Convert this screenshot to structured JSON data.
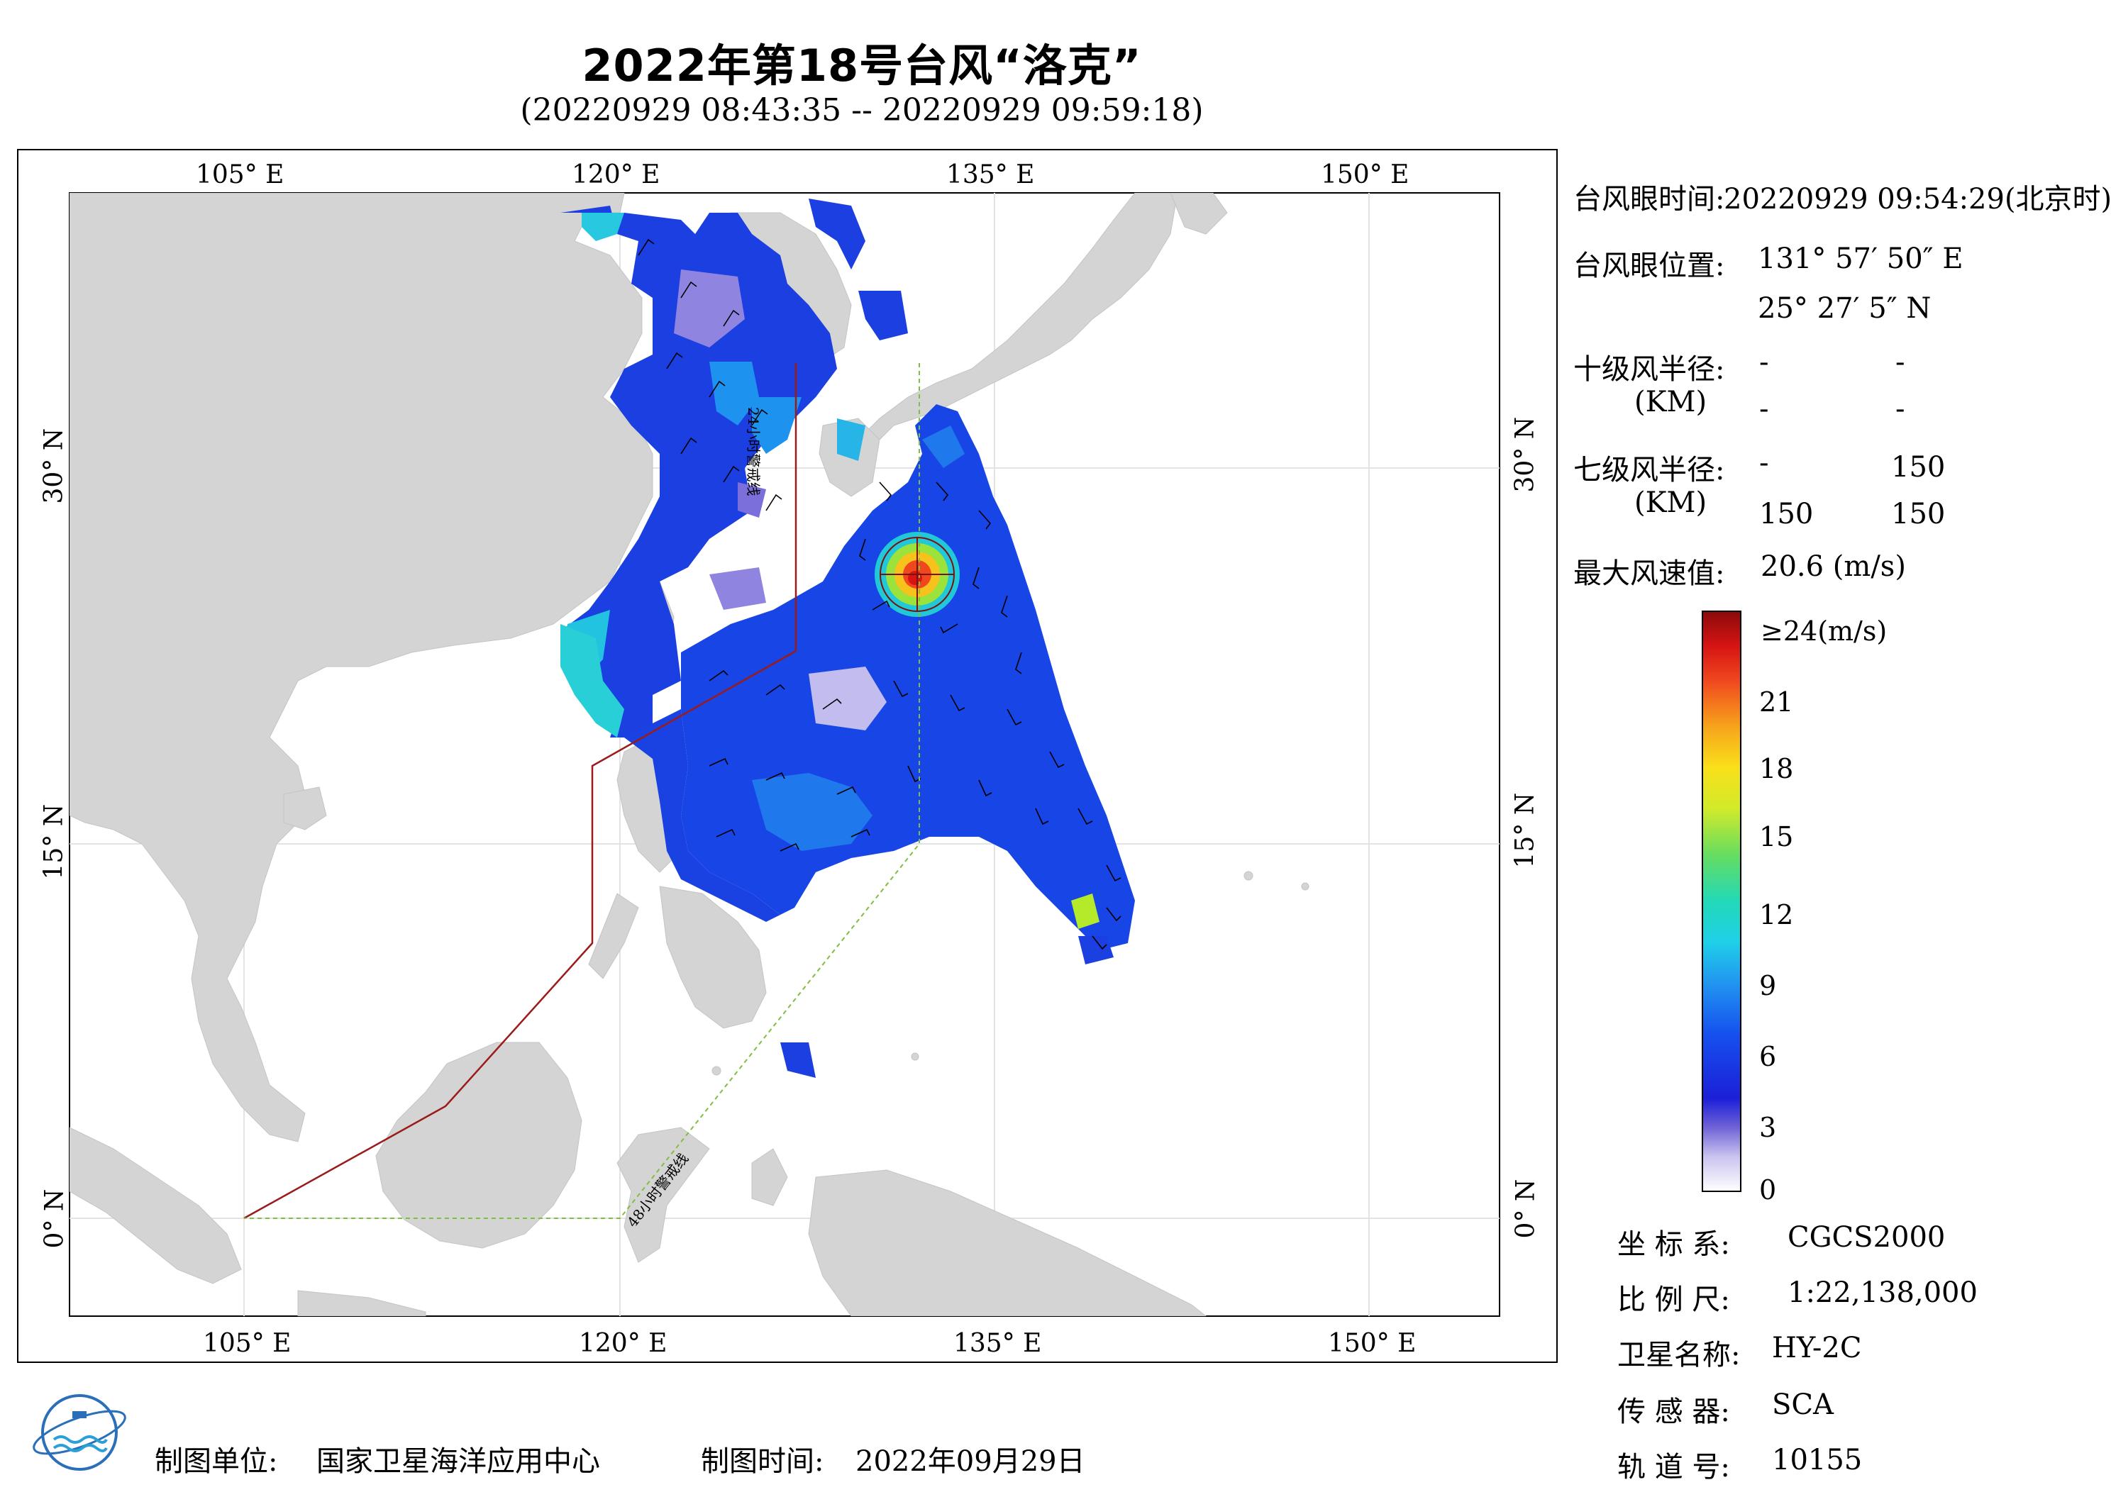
{
  "header": {
    "title": "2022年第18号台风“洛克”",
    "subtitle": "(20220929 08:43:35 -- 20220929 09:59:18)"
  },
  "map": {
    "lon_ticks": [
      "105° E",
      "120° E",
      "135° E",
      "150° E"
    ],
    "lat_ticks": [
      "30° N",
      "15° N",
      "0° N"
    ],
    "line_24h_label": "24小时警戒线",
    "line_48h_label": "48小时警戒线",
    "colors": {
      "land": "#d4d4d4",
      "sea": "#ffffff",
      "line_24h": "#9b1b1b",
      "line_48h": "#7fbf3f",
      "grid": "#e6e6e6"
    }
  },
  "typhoon_info": {
    "eye_time_label": "台风眼时间:",
    "eye_time_value": "20220929 09:54:29(北京时)",
    "eye_pos_label": "台风眼位置:",
    "eye_lon": "131° 57′ 50″ E",
    "eye_lat": "25° 27′ 5″ N",
    "r10_label": "十级风半径:",
    "r10_unit": "(KM)",
    "r10_values": [
      "-",
      "-",
      "-",
      "-"
    ],
    "r7_label": "七级风半径:",
    "r7_unit": "(KM)",
    "r7_values": [
      "-",
      "150",
      "150",
      "150"
    ],
    "max_wind_label": "最大风速值:",
    "max_wind_value": "20.6 (m/s)"
  },
  "colorbar": {
    "labels": [
      "≥24(m/s)",
      "21",
      "18",
      "15",
      "12",
      "9",
      "6",
      "3",
      "0"
    ]
  },
  "metadata": {
    "coord_label": "坐 标 系:",
    "coord_value": "CGCS2000",
    "scale_label": "比 例 尺:",
    "scale_value": "1:22,138,000",
    "sat_label": "卫星名称:",
    "sat_value": "HY-2C",
    "sensor_label": "传 感 器:",
    "sensor_value": "SCA",
    "orbit_label": "轨 道 号:",
    "orbit_value": "10155"
  },
  "footer": {
    "unit_label": "制图单位:",
    "unit_value": "国家卫星海洋应用中心",
    "time_label": "制图时间:",
    "time_value": "2022年09月29日",
    "logo_name": "nsoas-logo"
  }
}
